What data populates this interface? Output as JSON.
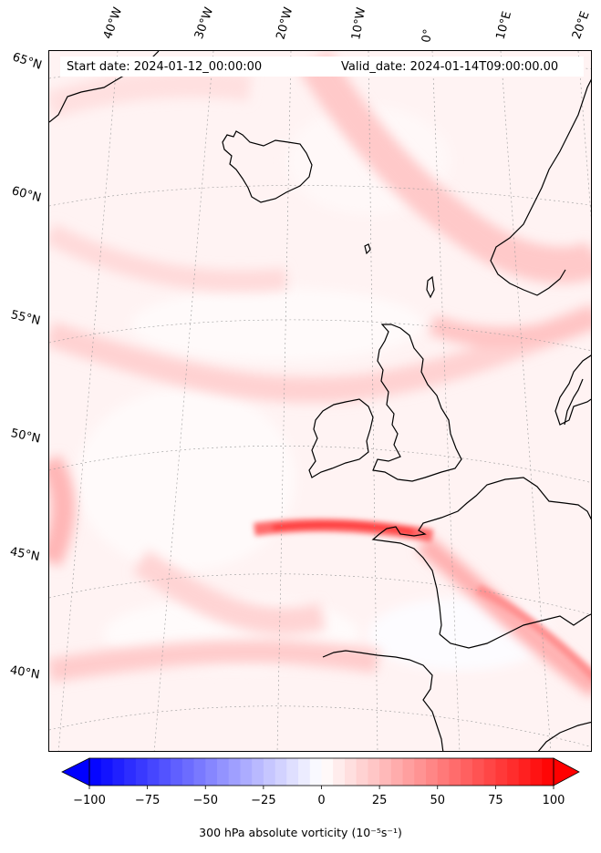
{
  "header": {
    "start_date": "Start date: 2024-01-12_00:00:00",
    "valid_date": "Valid_date: 2024-01-14T09:00:00.00"
  },
  "lon_labels": [
    "40°W",
    "30°W",
    "20°W",
    "10°W",
    "0°",
    "10°E",
    "20°E"
  ],
  "lat_labels": [
    "65°N",
    "60°N",
    "55°N",
    "50°N",
    "45°N",
    "40°N"
  ],
  "colorbar": {
    "min": -100,
    "max": 100,
    "ticks": [
      "−100",
      "−75",
      "−50",
      "−25",
      "0",
      "25",
      "50",
      "75",
      "100"
    ],
    "title": "300 hPa absolute vorticity",
    "units": "(10⁻⁵s⁻¹)",
    "colormap": "bwr",
    "extend": "both",
    "levels": 41
  },
  "colors": {
    "land_outline": "#000000",
    "min_color": "#0000ff",
    "mid_color": "#ffffff",
    "max_color": "#ff0000",
    "gridline": "#999999"
  }
}
